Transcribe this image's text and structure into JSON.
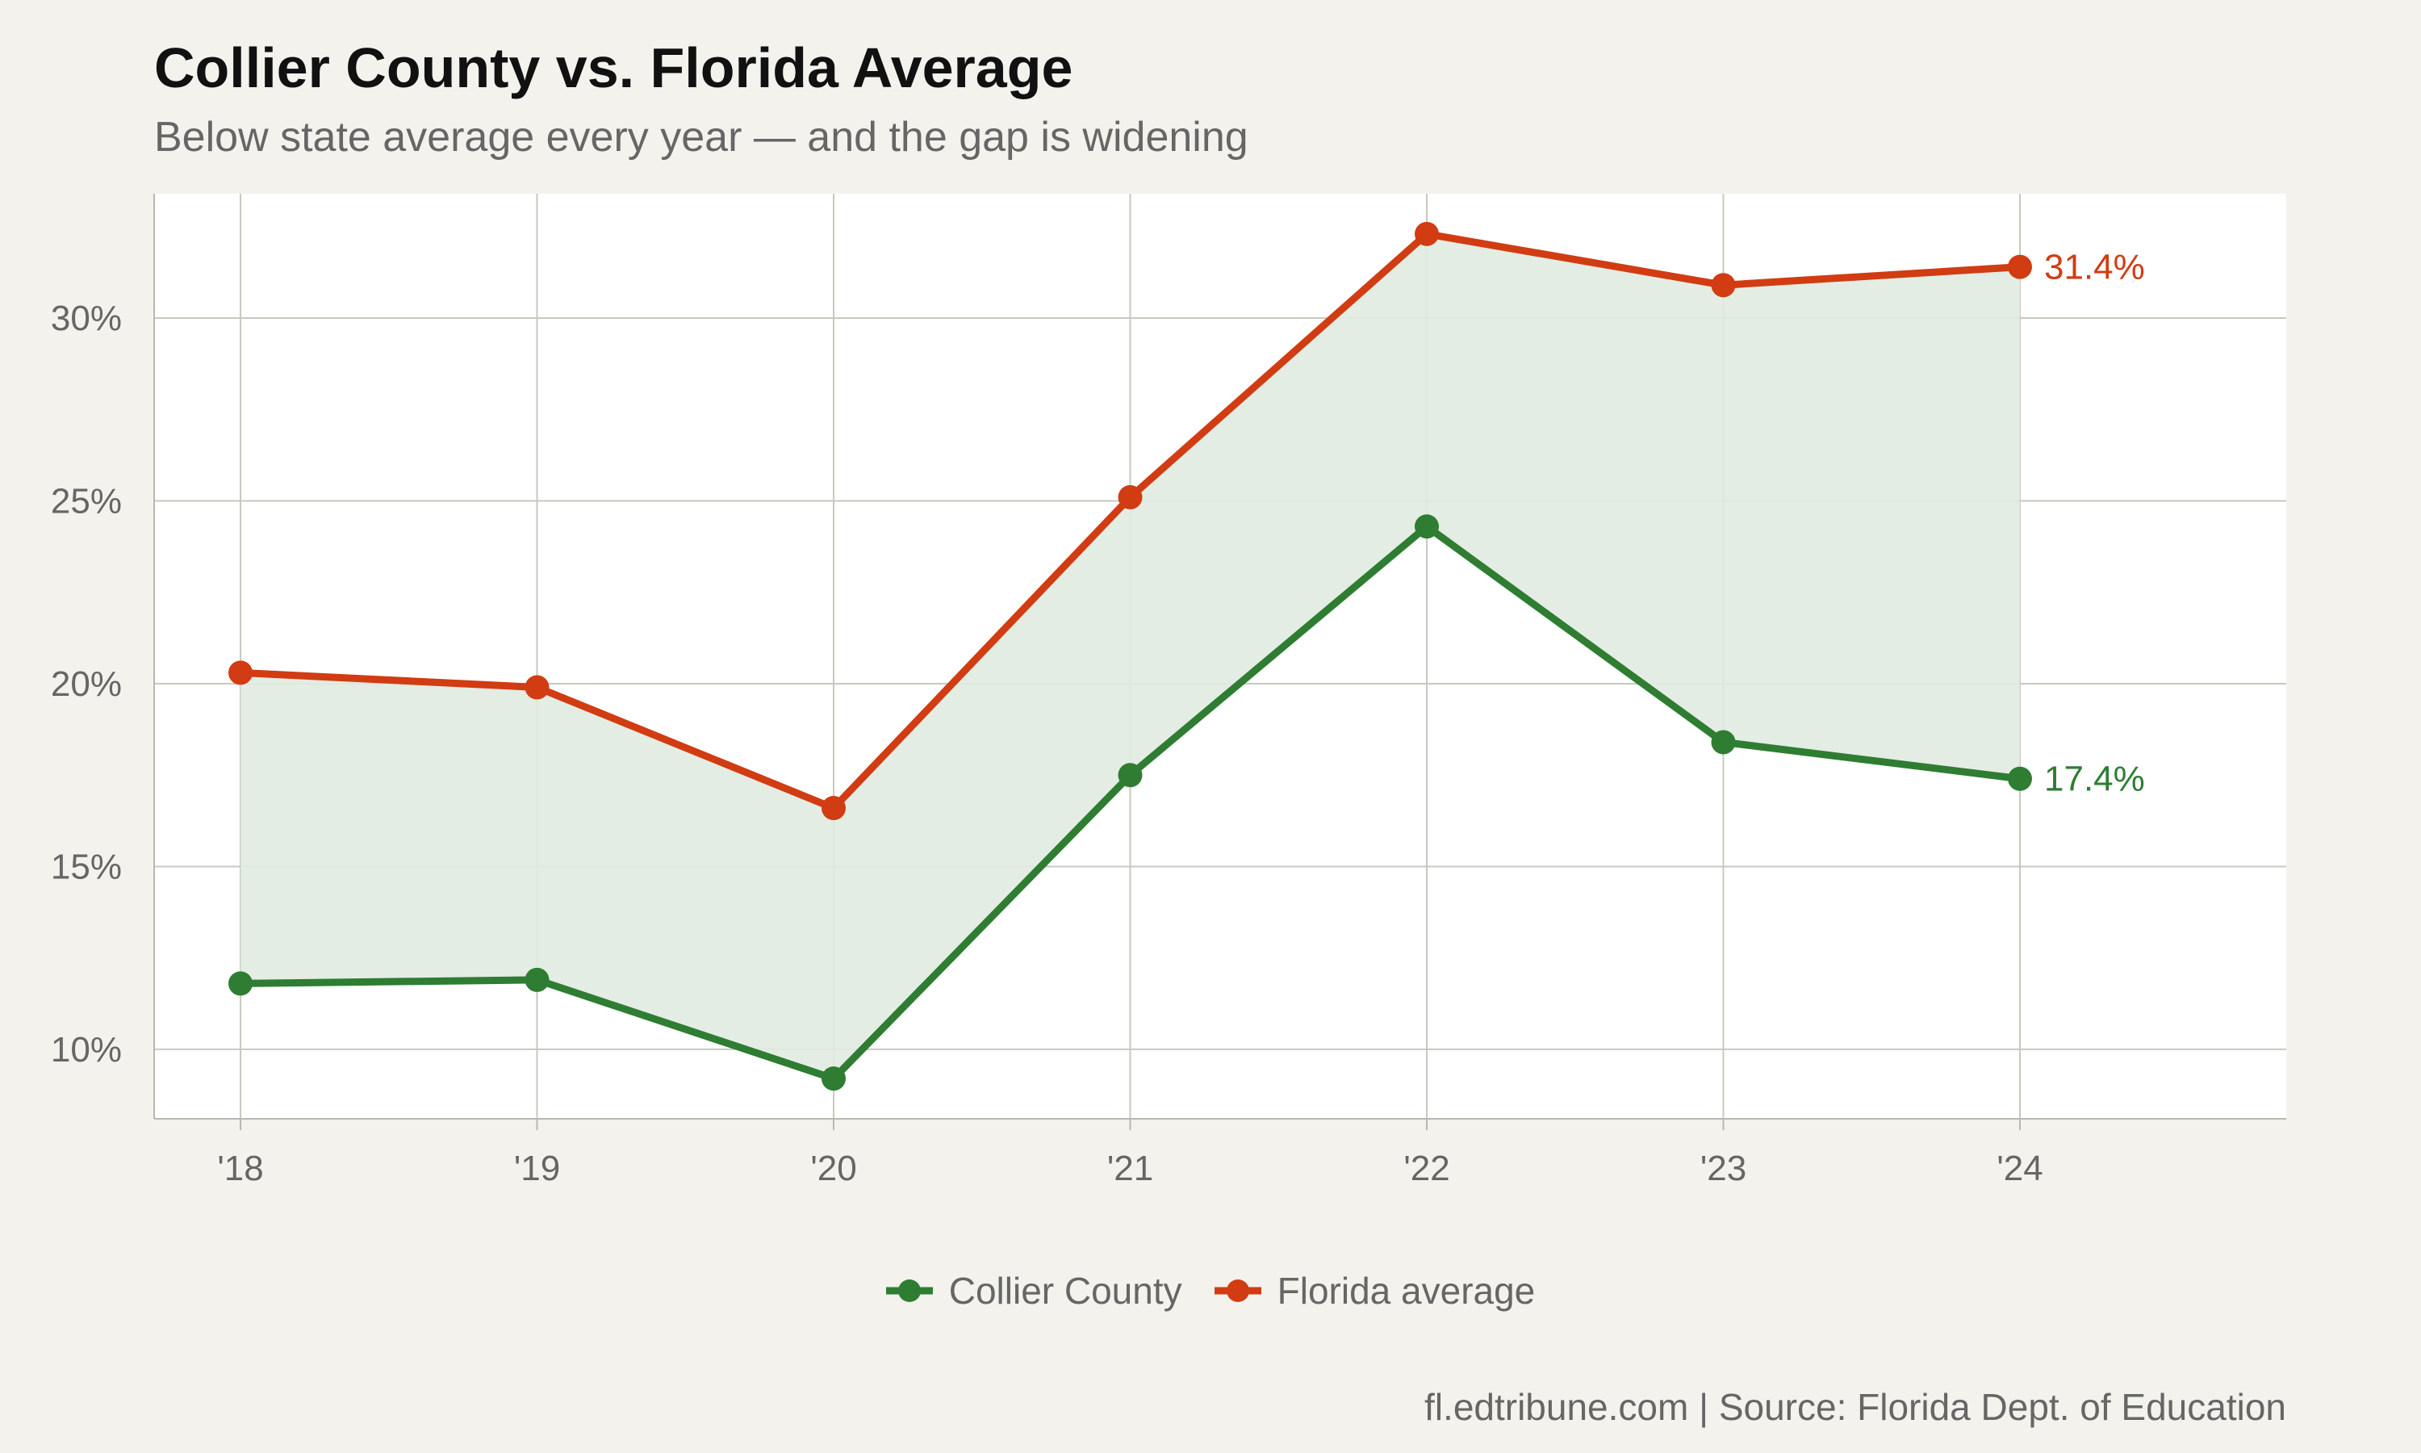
{
  "title": "Collier County vs. Florida Average",
  "subtitle": "Below state average every year — and the gap is widening",
  "caption": "fl.edtribune.com | Source: Florida Dept. of Education",
  "chart_data": {
    "type": "line",
    "title": "Collier County vs. Florida Average",
    "subtitle": "Below state average every year — and the gap is widening",
    "xlabel": "",
    "ylabel": "",
    "x": [
      "'18",
      "'19",
      "'20",
      "'21",
      "'22",
      "'23",
      "'24"
    ],
    "x_tick_labels": [
      "'18",
      "'19",
      "'20",
      "'21",
      "'22",
      "'23",
      "'24"
    ],
    "y_tick_values": [
      10,
      15,
      20,
      25,
      30
    ],
    "y_tick_labels": [
      "10%",
      "15%",
      "20%",
      "25%",
      "30%"
    ],
    "ylim": [
      8.1,
      33.4
    ],
    "grid": true,
    "legend_position": "bottom",
    "shaded_gap_between_series": true,
    "gap_fill_color": "#e0ebe0",
    "series": [
      {
        "name": "Collier County",
        "color": "#2e7d32",
        "values": [
          11.8,
          11.9,
          9.2,
          17.5,
          24.3,
          18.4,
          17.4
        ],
        "end_label": "17.4%"
      },
      {
        "name": "Florida average",
        "color": "#d13c13",
        "values": [
          20.3,
          19.9,
          16.6,
          25.1,
          32.3,
          30.9,
          31.4
        ],
        "end_label": "31.4%"
      }
    ]
  }
}
